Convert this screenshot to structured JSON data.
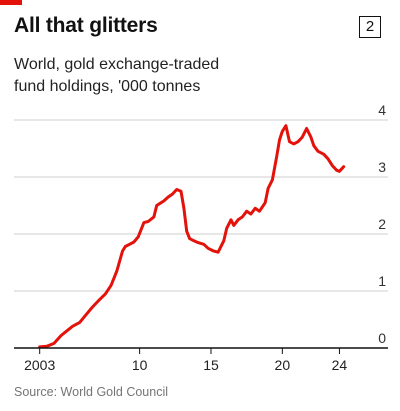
{
  "header": {
    "title": "All that glitters",
    "figure_number": "2",
    "subtitle_line1": "World, gold exchange-traded",
    "subtitle_line2": "fund holdings, '000 tonnes"
  },
  "footer": {
    "source": "Source: World Gold Council"
  },
  "colors": {
    "line": "#e3120b",
    "accent_tag": "#e3120b",
    "grid": "#cfcfcf",
    "axis": "#111111",
    "text": "#111111"
  },
  "chart_data": {
    "type": "line",
    "title": "All that glitters",
    "subtitle": "World, gold exchange-traded fund holdings, '000 tonnes",
    "xlabel": "",
    "ylabel": "",
    "x_ticks": [
      2003,
      2010,
      2015,
      2020,
      2024
    ],
    "x_tick_labels": [
      "2003",
      "10",
      "15",
      "20",
      "24"
    ],
    "y_ticks": [
      0,
      1,
      2,
      3,
      4
    ],
    "y_tick_labels": [
      "0",
      "1",
      "2",
      "3",
      "4"
    ],
    "ylim": [
      0,
      4
    ],
    "xlim": [
      2001.2,
      2025.3
    ],
    "grid": true,
    "legend": "none",
    "series": [
      {
        "x": [
          2003.0,
          2003.5,
          2004.0,
          2004.5,
          2004.9,
          2005.3,
          2005.8,
          2006.3,
          2006.7,
          2007.2,
          2007.6,
          2008.0,
          2008.4,
          2008.8,
          2009.0,
          2009.3,
          2009.6,
          2009.9,
          2010.3,
          2010.6,
          2011.0,
          2011.2,
          2011.5,
          2011.7,
          2012.0,
          2012.3,
          2012.6,
          2012.9,
          2013.1,
          2013.3,
          2013.5,
          2013.8,
          2014.1,
          2014.5,
          2014.8,
          2015.2,
          2015.5,
          2015.9,
          2016.1,
          2016.4,
          2016.6,
          2016.9,
          2017.2,
          2017.5,
          2017.8,
          2018.1,
          2018.4,
          2018.8,
          2019.0,
          2019.3,
          2019.6,
          2019.8,
          2020.0,
          2020.25,
          2020.5,
          2020.8,
          2021.1,
          2021.4,
          2021.7,
          2022.0,
          2022.2,
          2022.5,
          2022.9,
          2023.2,
          2023.5,
          2023.8,
          2024.0,
          2024.3
        ],
        "values": [
          0.02,
          0.03,
          0.08,
          0.22,
          0.3,
          0.38,
          0.45,
          0.6,
          0.72,
          0.85,
          0.95,
          1.1,
          1.35,
          1.7,
          1.78,
          1.82,
          1.86,
          1.95,
          2.2,
          2.22,
          2.3,
          2.5,
          2.55,
          2.58,
          2.65,
          2.7,
          2.78,
          2.75,
          2.45,
          2.05,
          1.92,
          1.88,
          1.85,
          1.82,
          1.75,
          1.7,
          1.68,
          1.88,
          2.1,
          2.25,
          2.15,
          2.25,
          2.3,
          2.4,
          2.35,
          2.45,
          2.4,
          2.55,
          2.8,
          2.95,
          3.35,
          3.65,
          3.8,
          3.9,
          3.62,
          3.58,
          3.62,
          3.7,
          3.85,
          3.7,
          3.55,
          3.45,
          3.4,
          3.32,
          3.2,
          3.12,
          3.1,
          3.18
        ]
      }
    ]
  }
}
